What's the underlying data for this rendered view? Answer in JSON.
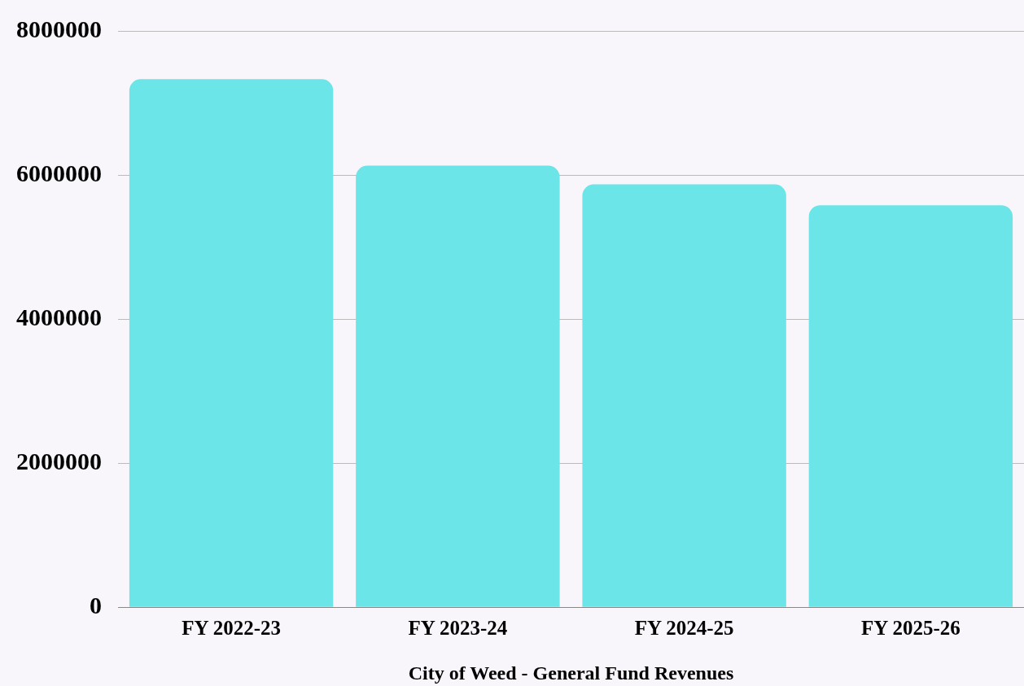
{
  "chart_data": {
    "type": "bar",
    "xlabel": "City of Weed - General Fund Revenues",
    "categories": [
      "FY 2022-23",
      "FY 2023-24",
      "FY 2024-25",
      "FY 2025-26"
    ],
    "values": [
      7330000,
      6130000,
      5870000,
      5580000
    ],
    "color": "#6ce5e8",
    "ylim": [
      0,
      8000000
    ],
    "yticks": [
      0,
      2000000,
      4000000,
      6000000,
      8000000
    ],
    "grid": "y",
    "legend": false
  }
}
